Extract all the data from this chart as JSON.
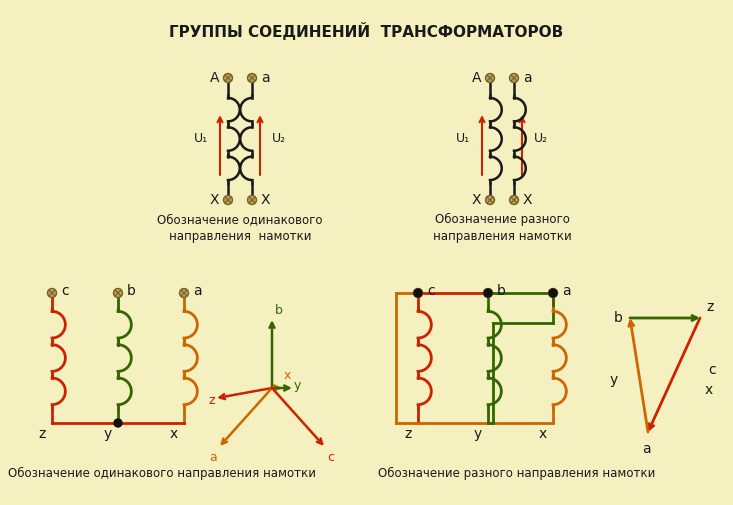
{
  "title": "ГРУППЫ СОЕДИНЕНИЙ  ТРАНСФОРМАТОРОВ",
  "bg_color": "#f5f0c0",
  "black": "#1a1a1a",
  "red_arrow": "#cc2200",
  "orange_coil": "#cc6600",
  "green_coil": "#336600",
  "red_coil": "#cc2200",
  "dot_fill": "#b8a060",
  "dot_edge": "#7a6020",
  "label1": "Обозначение одинакового\nнаправления  намотки",
  "label2": "Обозначение разного\nнаправления намотки",
  "label3": "Обозначение одинакового направления намотки",
  "label4": "Обозначение разного направления намотки"
}
